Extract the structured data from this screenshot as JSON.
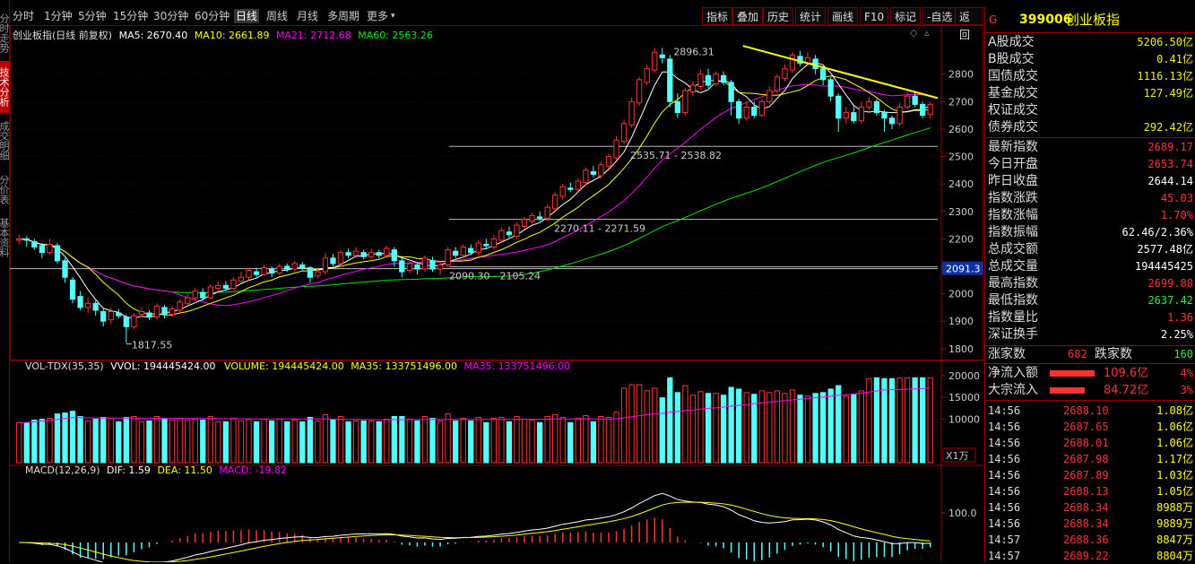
{
  "left_tabs": [
    "分时走势",
    "技术分析",
    "成交明细",
    "分价表",
    "基本资料"
  ],
  "toolbar": {
    "periods": [
      "分时",
      "1分钟",
      "5分钟",
      "15分钟",
      "30分钟",
      "60分钟",
      "日线",
      "周线",
      "月线",
      "多周期",
      "更多"
    ],
    "active_period": "日线",
    "buttons": [
      "指标",
      "叠加",
      "历史",
      "统计",
      "画线",
      "F10",
      "标记",
      "-自选",
      "返回"
    ]
  },
  "main_legend": {
    "name": "创业板指(日线 前复权)",
    "ma5": "MA5: 2670.40",
    "ma10": "MA10: 2661.89",
    "ma21": "MA21: 2712.68",
    "ma60": "MA60: 2563.26"
  },
  "vol_legend": {
    "name": "VOL-TDX(35,35)",
    "vvol": "VVOL: 194445424.00",
    "volume": "VOLUME: 194445424.00",
    "ma35a": "MA35: 133751496.00",
    "ma35b": "MA35: 133751496.00"
  },
  "macd_legend": {
    "name": "MACD(12,26,9)",
    "dif": "DIF: 1.59",
    "dea": "DEA: 11.50",
    "macd": "MACD: -19.82"
  },
  "price_axis": [
    "2800",
    "2700",
    "2600",
    "2500",
    "2400",
    "2300",
    "2200",
    "2100",
    "2000",
    "1900",
    "1800"
  ],
  "price_marker": "2091.3",
  "vol_axis": [
    "20000",
    "15000",
    "10000"
  ],
  "vol_unit": "X1万",
  "macd_axis": [
    "100.0"
  ],
  "annotations": {
    "high": "2896.31",
    "low": "1817.55",
    "level1": "2535.71 - 2538.82",
    "level2": "2270.11 - 2271.59",
    "level3": "2090.30 - 2105.24"
  },
  "colors": {
    "up": "#ff3232",
    "down": "#54fcfc",
    "ma5": "#ffffff",
    "ma10": "#ffff00",
    "ma21": "#ff00ff",
    "ma60": "#00e600",
    "trend": "#ffff00"
  },
  "chart_data": {
    "type": "candlestick",
    "title": "创业板指(日线 前复权)",
    "price_ylim": [
      1770,
      2920
    ],
    "candles": [
      [
        2195,
        2200,
        2215,
        2180
      ],
      [
        2200,
        2195,
        2210,
        2170
      ],
      [
        2190,
        2170,
        2200,
        2160
      ],
      [
        2175,
        2150,
        2185,
        2130
      ],
      [
        2150,
        2180,
        2200,
        2140
      ],
      [
        2175,
        2120,
        2185,
        2110
      ],
      [
        2120,
        2060,
        2130,
        2040
      ],
      [
        2050,
        1980,
        2060,
        1965
      ],
      [
        1990,
        1950,
        2010,
        1940
      ],
      [
        1950,
        1965,
        1985,
        1930
      ],
      [
        1965,
        1940,
        1975,
        1920
      ],
      [
        1935,
        1900,
        1950,
        1880
      ],
      [
        1905,
        1935,
        1950,
        1890
      ],
      [
        1930,
        1920,
        1945,
        1910
      ],
      [
        1915,
        1880,
        1925,
        1820
      ],
      [
        1880,
        1920,
        1930,
        1870
      ],
      [
        1925,
        1935,
        1950,
        1915
      ],
      [
        1930,
        1915,
        1940,
        1905
      ],
      [
        1915,
        1955,
        1965,
        1905
      ],
      [
        1950,
        1925,
        1960,
        1910
      ],
      [
        1925,
        1945,
        1955,
        1915
      ],
      [
        1940,
        1970,
        1980,
        1930
      ],
      [
        1965,
        1985,
        2000,
        1955
      ],
      [
        1985,
        2010,
        2020,
        1975
      ],
      [
        2005,
        1985,
        2020,
        1975
      ],
      [
        1985,
        2025,
        2035,
        1980
      ],
      [
        2020,
        2030,
        2045,
        2010
      ],
      [
        2030,
        2020,
        2045,
        2010
      ],
      [
        2020,
        2050,
        2060,
        2015
      ],
      [
        2045,
        2060,
        2080,
        2040
      ],
      [
        2060,
        2085,
        2095,
        2050
      ],
      [
        2080,
        2070,
        2095,
        2060
      ],
      [
        2070,
        2095,
        2105,
        2065
      ],
      [
        2090,
        2075,
        2100,
        2060
      ],
      [
        2075,
        2100,
        2110,
        2070
      ],
      [
        2100,
        2090,
        2110,
        2080
      ],
      [
        2090,
        2110,
        2120,
        2080
      ],
      [
        2105,
        2095,
        2115,
        2085
      ],
      [
        2095,
        2060,
        2100,
        2040
      ],
      [
        2065,
        2080,
        2095,
        2055
      ],
      [
        2080,
        2130,
        2150,
        2070
      ],
      [
        2130,
        2110,
        2145,
        2100
      ],
      [
        2110,
        2150,
        2160,
        2100
      ],
      [
        2150,
        2140,
        2165,
        2130
      ],
      [
        2140,
        2155,
        2170,
        2130
      ],
      [
        2150,
        2135,
        2160,
        2125
      ],
      [
        2135,
        2150,
        2165,
        2125
      ],
      [
        2150,
        2140,
        2160,
        2130
      ],
      [
        2140,
        2165,
        2175,
        2130
      ],
      [
        2160,
        2120,
        2170,
        2100
      ],
      [
        2120,
        2080,
        2130,
        2060
      ],
      [
        2085,
        2110,
        2125,
        2075
      ],
      [
        2105,
        2090,
        2115,
        2070
      ],
      [
        2090,
        2130,
        2140,
        2080
      ],
      [
        2120,
        2090,
        2135,
        2080
      ],
      [
        2090,
        2105,
        2120,
        2070
      ],
      [
        2105,
        2160,
        2170,
        2095
      ],
      [
        2155,
        2140,
        2170,
        2130
      ],
      [
        2140,
        2170,
        2180,
        2130
      ],
      [
        2165,
        2150,
        2180,
        2140
      ],
      [
        2150,
        2185,
        2195,
        2140
      ],
      [
        2180,
        2175,
        2200,
        2165
      ],
      [
        2170,
        2200,
        2215,
        2160
      ],
      [
        2195,
        2230,
        2240,
        2185
      ],
      [
        2225,
        2215,
        2245,
        2205
      ],
      [
        2210,
        2250,
        2260,
        2200
      ],
      [
        2245,
        2270,
        2280,
        2235
      ],
      [
        2265,
        2285,
        2295,
        2255
      ],
      [
        2280,
        2275,
        2300,
        2265
      ],
      [
        2275,
        2315,
        2325,
        2265
      ],
      [
        2310,
        2360,
        2370,
        2300
      ],
      [
        2355,
        2390,
        2400,
        2345
      ],
      [
        2385,
        2380,
        2405,
        2370
      ],
      [
        2380,
        2410,
        2420,
        2370
      ],
      [
        2405,
        2450,
        2460,
        2395
      ],
      [
        2445,
        2435,
        2465,
        2425
      ],
      [
        2430,
        2470,
        2480,
        2420
      ],
      [
        2465,
        2500,
        2510,
        2455
      ],
      [
        2495,
        2560,
        2575,
        2485
      ],
      [
        2555,
        2620,
        2635,
        2545
      ],
      [
        2615,
        2700,
        2715,
        2605
      ],
      [
        2695,
        2780,
        2790,
        2685
      ],
      [
        2770,
        2820,
        2835,
        2760
      ],
      [
        2815,
        2880,
        2896,
        2805
      ],
      [
        2870,
        2860,
        2896,
        2840
      ],
      [
        2855,
        2700,
        2870,
        2680
      ],
      [
        2700,
        2660,
        2730,
        2640
      ],
      [
        2660,
        2740,
        2750,
        2650
      ],
      [
        2735,
        2760,
        2775,
        2720
      ],
      [
        2755,
        2800,
        2815,
        2745
      ],
      [
        2795,
        2760,
        2820,
        2750
      ],
      [
        2765,
        2800,
        2810,
        2755
      ],
      [
        2795,
        2770,
        2810,
        2760
      ],
      [
        2770,
        2700,
        2780,
        2650
      ],
      [
        2700,
        2640,
        2710,
        2620
      ],
      [
        2640,
        2680,
        2700,
        2630
      ],
      [
        2680,
        2650,
        2700,
        2640
      ],
      [
        2650,
        2700,
        2710,
        2645
      ],
      [
        2700,
        2740,
        2755,
        2690
      ],
      [
        2740,
        2790,
        2800,
        2730
      ],
      [
        2785,
        2820,
        2835,
        2775
      ],
      [
        2815,
        2870,
        2880,
        2805
      ],
      [
        2865,
        2840,
        2885,
        2830
      ],
      [
        2840,
        2860,
        2880,
        2830
      ],
      [
        2855,
        2820,
        2870,
        2800
      ],
      [
        2820,
        2780,
        2830,
        2760
      ],
      [
        2780,
        2720,
        2790,
        2700
      ],
      [
        2720,
        2640,
        2730,
        2590
      ],
      [
        2640,
        2660,
        2680,
        2620
      ],
      [
        2660,
        2630,
        2690,
        2620
      ],
      [
        2630,
        2680,
        2700,
        2620
      ],
      [
        2680,
        2700,
        2715,
        2670
      ],
      [
        2700,
        2660,
        2710,
        2650
      ],
      [
        2660,
        2640,
        2670,
        2590
      ],
      [
        2640,
        2620,
        2650,
        2600
      ],
      [
        2620,
        2680,
        2695,
        2610
      ],
      [
        2680,
        2720,
        2735,
        2670
      ],
      [
        2720,
        2690,
        2740,
        2680
      ],
      [
        2690,
        2650,
        2700,
        2640
      ],
      [
        2653,
        2689,
        2700,
        2637
      ]
    ]
  },
  "right_panel": {
    "header_flag": "G",
    "code": "399006",
    "name": "创业板指",
    "volume_rows": [
      {
        "label": "A股成交",
        "value": "5206.50亿"
      },
      {
        "label": "B股成交",
        "value": "0.41亿"
      },
      {
        "label": "国债成交",
        "value": "1116.13亿"
      },
      {
        "label": "基金成交",
        "value": "127.49亿"
      },
      {
        "label": "权证成交",
        "value": ""
      },
      {
        "label": "债券成交",
        "value": "292.42亿"
      }
    ],
    "index_rows": [
      {
        "label": "最新指数",
        "value": "2689.17",
        "color": "red"
      },
      {
        "label": "今日开盘",
        "value": "2653.74",
        "color": "red"
      },
      {
        "label": "昨日收盘",
        "value": "2644.14",
        "color": "white"
      },
      {
        "label": "指数涨跌",
        "value": "45.03",
        "color": "red"
      },
      {
        "label": "指数涨幅",
        "value": "1.70%",
        "color": "red"
      },
      {
        "label": "指数振幅",
        "value": "62.46/2.36%",
        "color": "white"
      },
      {
        "label": "总成交额",
        "value": "2577.48亿",
        "color": "white"
      },
      {
        "label": "总成交量",
        "value": "194445425",
        "color": "white"
      },
      {
        "label": "最高指数",
        "value": "2699.88",
        "color": "red"
      },
      {
        "label": "最低指数",
        "value": "2637.42",
        "color": "green"
      },
      {
        "label": "指数量比",
        "value": "1.36",
        "color": "red"
      },
      {
        "label": "深证换手",
        "value": "2.25%",
        "color": "white"
      }
    ],
    "breadth": {
      "up_label": "涨家数",
      "up_value": "682",
      "down_label": "跌家数",
      "down_value": "160"
    },
    "flows": [
      {
        "label": "净流入额",
        "value": "109.6亿",
        "pct": "4%",
        "bar": 0.9
      },
      {
        "label": "大宗流入",
        "value": "84.72亿",
        "pct": "3%",
        "bar": 0.7
      }
    ],
    "ticks": [
      {
        "time": "14:56",
        "price": "2688.10",
        "vol": "1.08亿"
      },
      {
        "time": "14:56",
        "price": "2687.65",
        "vol": "1.06亿"
      },
      {
        "time": "14:56",
        "price": "2688.01",
        "vol": "1.06亿"
      },
      {
        "time": "14:56",
        "price": "2687.98",
        "vol": "1.17亿"
      },
      {
        "time": "14:56",
        "price": "2687.89",
        "vol": "1.03亿"
      },
      {
        "time": "14:56",
        "price": "2688.13",
        "vol": "1.05亿"
      },
      {
        "time": "14:56",
        "price": "2688.34",
        "vol": "8988万"
      },
      {
        "time": "14:56",
        "price": "2688.34",
        "vol": "9889万"
      },
      {
        "time": "14:57",
        "price": "2688.36",
        "vol": "8847万"
      },
      {
        "time": "14:57",
        "price": "2689.22",
        "vol": "8804万"
      }
    ]
  }
}
